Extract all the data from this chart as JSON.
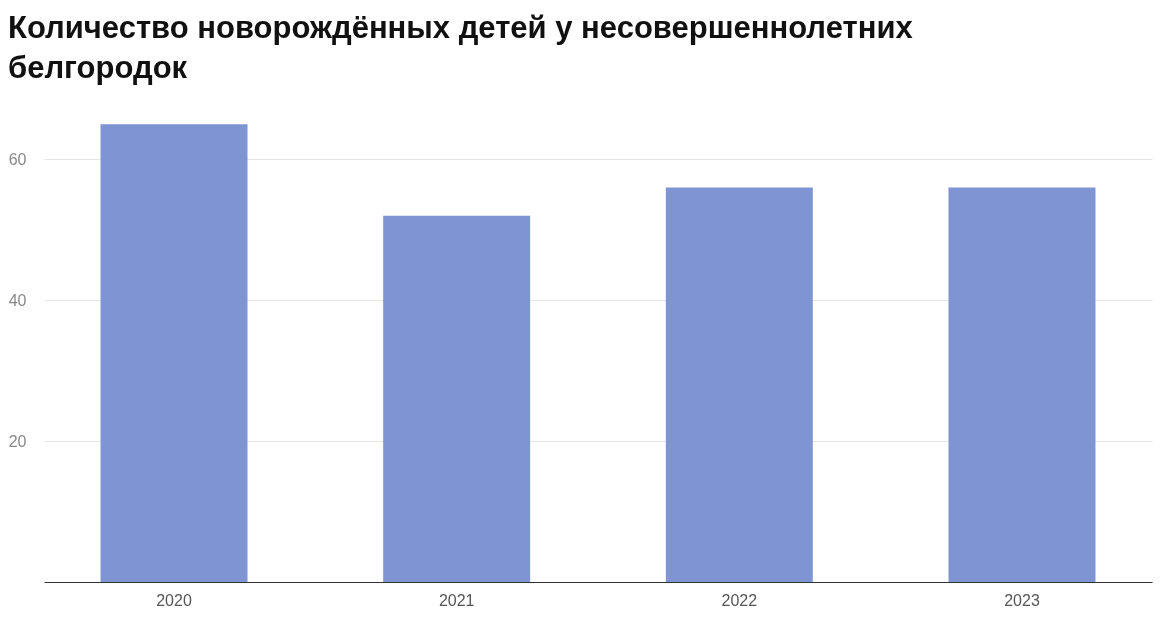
{
  "chart_data": {
    "type": "bar",
    "title": "Количество новорождённых детей у несовершеннолетних белгородок",
    "categories": [
      "2020",
      "2021",
      "2022",
      "2023"
    ],
    "values": [
      65,
      52,
      56,
      56
    ],
    "color": "#7f94d2",
    "ylim": [
      0,
      68
    ],
    "yticks": [
      20,
      40,
      60
    ],
    "grid": "y"
  }
}
